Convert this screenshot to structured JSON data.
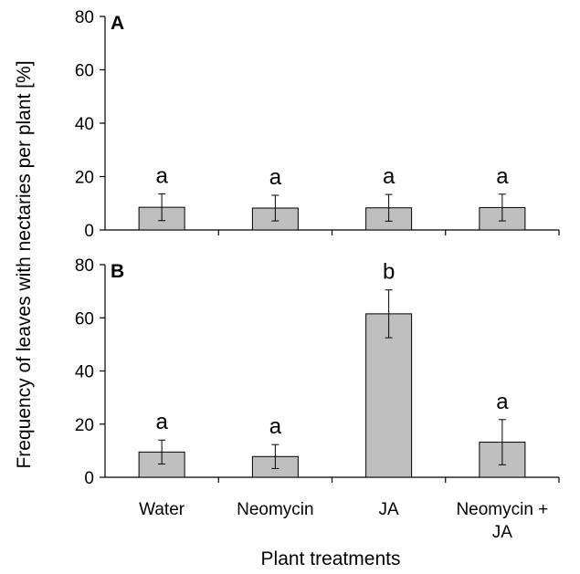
{
  "chart_data": [
    {
      "type": "bar",
      "panel": "A",
      "categories": [
        "Water",
        "Neomycin",
        "JA",
        "Neomycin + JA"
      ],
      "values": [
        8.5,
        8.2,
        8.3,
        8.4
      ],
      "errors": [
        5.0,
        4.8,
        5.0,
        5.0
      ],
      "significance": [
        "a",
        "a",
        "a",
        "a"
      ],
      "ylim": [
        0,
        80
      ],
      "yticks": [
        0,
        20,
        40,
        60,
        80
      ],
      "grid": false
    },
    {
      "type": "bar",
      "panel": "B",
      "categories": [
        "Water",
        "Neomycin",
        "JA",
        "Neomycin + JA"
      ],
      "values": [
        9.5,
        7.8,
        61.5,
        13.2
      ],
      "errors": [
        4.5,
        4.5,
        9.0,
        8.5
      ],
      "significance": [
        "a",
        "a",
        "b",
        "a"
      ],
      "ylim": [
        0,
        80
      ],
      "yticks": [
        0,
        20,
        40,
        60,
        80
      ],
      "grid": false
    }
  ],
  "category_labels": [
    {
      "line1": "Water",
      "line2": ""
    },
    {
      "line1": "Neomycin",
      "line2": ""
    },
    {
      "line1": "JA",
      "line2": ""
    },
    {
      "line1": "Neomycin +",
      "line2": "JA"
    }
  ],
  "ylabel": "Frequency of leaves with nectaries per plant [%]",
  "xlabel": "Plant treatments"
}
